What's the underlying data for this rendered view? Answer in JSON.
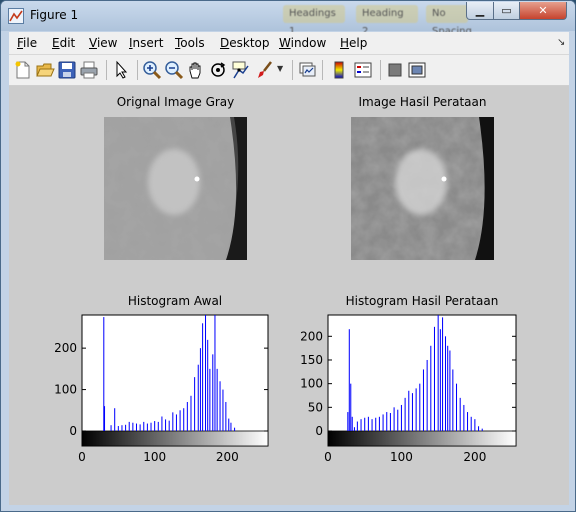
{
  "window": {
    "title": "Figure 1",
    "blurred_tabs": [
      "Headings 1",
      "Heading 2",
      "No Spacing"
    ],
    "buttons": {
      "minimize": "▁",
      "maximize": "▭",
      "close": "✕"
    }
  },
  "menu": {
    "items": [
      "File",
      "Edit",
      "View",
      "Insert",
      "Tools",
      "Desktop",
      "Window",
      "Help"
    ]
  },
  "toolbar": {
    "icons": [
      "new-figure-icon",
      "open-file-icon",
      "save-icon",
      "print-icon",
      "edit-plot-icon",
      "zoom-in-icon",
      "zoom-out-icon",
      "pan-icon",
      "rotate-3d-icon",
      "data-cursor-icon",
      "brush-icon",
      "link-plot-icon",
      "colorbar-icon",
      "legend-icon",
      "hide-plot-tools-icon",
      "show-plot-tools-icon"
    ]
  },
  "panels": {
    "top_left_title": "Orignal Image Gray",
    "top_right_title": "Image Hasil Perataan"
  },
  "chart_data": [
    {
      "type": "bar",
      "title": "Histogram Awal",
      "xlabel": "",
      "ylabel": "",
      "xlim": [
        0,
        256
      ],
      "ylim": [
        0,
        280
      ],
      "xticks": [
        0,
        100,
        200
      ],
      "yticks": [
        0,
        100,
        200
      ],
      "color": "#0000ff",
      "bins": [
        [
          30,
          275
        ],
        [
          31,
          60
        ],
        [
          40,
          14
        ],
        [
          45,
          55
        ],
        [
          50,
          12
        ],
        [
          55,
          14
        ],
        [
          60,
          15
        ],
        [
          65,
          22
        ],
        [
          70,
          20
        ],
        [
          75,
          18
        ],
        [
          80,
          16
        ],
        [
          85,
          22
        ],
        [
          90,
          18
        ],
        [
          95,
          20
        ],
        [
          100,
          24
        ],
        [
          105,
          22
        ],
        [
          110,
          35
        ],
        [
          115,
          28
        ],
        [
          120,
          25
        ],
        [
          125,
          45
        ],
        [
          130,
          40
        ],
        [
          135,
          50
        ],
        [
          140,
          55
        ],
        [
          145,
          70
        ],
        [
          150,
          85
        ],
        [
          155,
          130
        ],
        [
          160,
          160
        ],
        [
          163,
          200
        ],
        [
          166,
          260
        ],
        [
          170,
          280
        ],
        [
          173,
          220
        ],
        [
          176,
          150
        ],
        [
          180,
          185
        ],
        [
          183,
          280
        ],
        [
          186,
          150
        ],
        [
          190,
          120
        ],
        [
          194,
          100
        ],
        [
          198,
          70
        ],
        [
          202,
          30
        ],
        [
          205,
          20
        ],
        [
          210,
          8
        ]
      ]
    },
    {
      "type": "bar",
      "title": "Histogram Hasil Perataan",
      "xlabel": "",
      "ylabel": "",
      "xlim": [
        0,
        256
      ],
      "ylim": [
        0,
        245
      ],
      "xticks": [
        0,
        100,
        200
      ],
      "yticks": [
        0,
        50,
        100,
        150,
        200
      ],
      "color": "#0000ff",
      "bins": [
        [
          27,
          40
        ],
        [
          29,
          215
        ],
        [
          31,
          100
        ],
        [
          33,
          30
        ],
        [
          36,
          8
        ],
        [
          40,
          20
        ],
        [
          45,
          25
        ],
        [
          50,
          28
        ],
        [
          55,
          30
        ],
        [
          60,
          25
        ],
        [
          65,
          28
        ],
        [
          70,
          30
        ],
        [
          75,
          35
        ],
        [
          80,
          40
        ],
        [
          85,
          38
        ],
        [
          90,
          50
        ],
        [
          95,
          45
        ],
        [
          100,
          55
        ],
        [
          105,
          70
        ],
        [
          110,
          85
        ],
        [
          115,
          80
        ],
        [
          120,
          90
        ],
        [
          125,
          100
        ],
        [
          130,
          130
        ],
        [
          135,
          150
        ],
        [
          140,
          180
        ],
        [
          145,
          220
        ],
        [
          150,
          245
        ],
        [
          153,
          215
        ],
        [
          156,
          240
        ],
        [
          160,
          200
        ],
        [
          163,
          180
        ],
        [
          166,
          170
        ],
        [
          170,
          130
        ],
        [
          175,
          100
        ],
        [
          180,
          70
        ],
        [
          185,
          55
        ],
        [
          190,
          40
        ],
        [
          195,
          30
        ],
        [
          200,
          25
        ],
        [
          205,
          10
        ],
        [
          210,
          5
        ]
      ]
    }
  ]
}
